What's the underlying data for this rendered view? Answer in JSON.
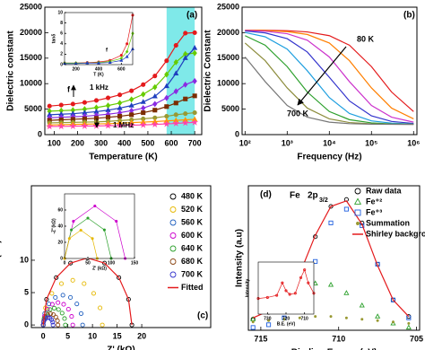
{
  "chart_data": [
    {
      "type": "line",
      "xlabel": "Temperature (K)",
      "ylabel": "Dielectric constant",
      "annotations": [
        "(a)",
        "1 kHz",
        "1 MHz",
        "f"
      ],
      "xlim": [
        60,
        730
      ],
      "ylim": [
        0,
        25000
      ],
      "xticks": [
        100,
        200,
        300,
        400,
        500,
        600,
        700
      ],
      "yticks": [
        0,
        5000,
        10000,
        15000,
        20000,
        25000
      ],
      "xscale": "linear",
      "marker_fill": "solid",
      "highlight": {
        "range": [
          580,
          700
        ],
        "color": "#5fe3e3"
      },
      "x": [
        80,
        130,
        180,
        230,
        280,
        330,
        380,
        430,
        480,
        530,
        580,
        620,
        660,
        700
      ],
      "series": [
        {
          "color": "#e41a1c",
          "marker": "circle",
          "line": true,
          "values": [
            5600,
            5800,
            6000,
            6300,
            6700,
            7200,
            7800,
            8600,
            9800,
            11500,
            14500,
            17500,
            19900,
            20000
          ]
        },
        {
          "color": "#66cc00",
          "marker": "diamond",
          "line": true,
          "values": [
            4600,
            4700,
            4800,
            5000,
            5300,
            5700,
            6200,
            6900,
            7900,
            9300,
            11800,
            14200,
            15800,
            16000
          ]
        },
        {
          "color": "#1f3fbf",
          "marker": "triangle",
          "line": true,
          "values": [
            3900,
            4000,
            4100,
            4300,
            4500,
            4800,
            5200,
            5700,
            6400,
            7500,
            9500,
            12000,
            15000,
            17000
          ]
        },
        {
          "color": "#8a2be2",
          "marker": "diamond",
          "line": true,
          "values": [
            3300,
            3400,
            3500,
            3600,
            3800,
            4000,
            4300,
            4700,
            5200,
            6000,
            7200,
            8500,
            9800,
            10500
          ]
        },
        {
          "color": "#7b2d00",
          "marker": "square",
          "line": true,
          "values": [
            2800,
            2900,
            3000,
            3100,
            3200,
            3400,
            3600,
            3900,
            4300,
            4800,
            5500,
            6200,
            7000,
            7600
          ]
        },
        {
          "color": "#999933",
          "marker": "circle",
          "line": true,
          "values": [
            2300,
            2350,
            2400,
            2450,
            2500,
            2600,
            2750,
            2900,
            3100,
            3300,
            3600,
            3900,
            4100,
            4300
          ]
        },
        {
          "color": "#ff9900",
          "marker": "triangle",
          "line": true,
          "values": [
            1900,
            1950,
            2000,
            2050,
            2100,
            2150,
            2250,
            2350,
            2450,
            2550,
            2700,
            2800,
            2900,
            3000
          ]
        },
        {
          "color": "#ff44aa",
          "marker": "star",
          "line": true,
          "values": [
            1600,
            1620,
            1650,
            1680,
            1700,
            1750,
            1800,
            1850,
            1900,
            2000,
            2100,
            2200,
            2300,
            2400
          ]
        }
      ],
      "inset": {
        "type": "line",
        "xlabel": "T (K)",
        "ylabel": "tanδ",
        "annotations": [
          "f"
        ],
        "xlim": [
          100,
          700
        ],
        "ylim": [
          0,
          10
        ],
        "xticks": [
          200,
          400,
          600
        ],
        "yticks": [
          0,
          2,
          4,
          6,
          8,
          10
        ],
        "xscale": "linear",
        "marker_fill": "solid",
        "x": [
          100,
          200,
          300,
          400,
          500,
          600,
          650,
          700
        ],
        "series": [
          {
            "color": "#e41a1c",
            "marker": "circle",
            "line": true,
            "values": [
              0.3,
              0.3,
              0.4,
              0.5,
              0.8,
              1.8,
              4,
              9.5
            ]
          },
          {
            "color": "#66cc00",
            "marker": "diamond",
            "line": true,
            "values": [
              0.3,
              0.3,
              0.3,
              0.4,
              0.6,
              1.2,
              2.5,
              6
            ]
          },
          {
            "color": "#1f3fbf",
            "marker": "triangle",
            "line": true,
            "values": [
              0.2,
              0.2,
              0.3,
              0.3,
              0.4,
              0.8,
              1.5,
              3
            ]
          }
        ]
      }
    },
    {
      "type": "line",
      "xlabel": "Frequency (Hz)",
      "ylabel": "Dielectric Constant",
      "annotations": [
        "(b)",
        "80 K",
        "700 K"
      ],
      "xlim": [
        85,
        1200000
      ],
      "ylim": [
        0,
        25000
      ],
      "xscale": "log",
      "xticks": [
        {
          "value": 100,
          "label": "10²"
        },
        {
          "value": 1000,
          "label": "10³"
        },
        {
          "value": 10000,
          "label": "10⁴"
        },
        {
          "value": 100000,
          "label": "10⁵"
        },
        {
          "value": 1000000,
          "label": "10⁶"
        }
      ],
      "yticks": [
        0,
        5000,
        10000,
        15000,
        20000,
        25000
      ],
      "marker_fill": "solid",
      "x": [
        100,
        300,
        1000,
        3000,
        10000,
        30000,
        100000,
        300000,
        1000000
      ],
      "series": [
        {
          "color": "#e41a1c",
          "marker": "none",
          "line": true,
          "values": [
            20500,
            20460,
            20390,
            20150,
            19410,
            17540,
            13340,
            8360,
            4530
          ]
        },
        {
          "color": "#ff7f00",
          "marker": "none",
          "line": true,
          "values": [
            20460,
            20410,
            20200,
            19650,
            17970,
            14510,
            9160,
            5200,
            3090
          ]
        },
        {
          "color": "#cc33cc",
          "marker": "none",
          "line": true,
          "values": [
            20430,
            20280,
            19800,
            18520,
            15230,
            10400,
            5720,
            3420,
            2440
          ]
        },
        {
          "color": "#3333cc",
          "marker": "none",
          "line": true,
          "values": [
            20320,
            19960,
            18820,
            16210,
            11250,
            6610,
            3680,
            2590,
            2190
          ]
        },
        {
          "color": "#1f9fdf",
          "marker": "none",
          "line": true,
          "values": [
            20040,
            19190,
            16780,
            12530,
            7270,
            4150,
            2700,
            2240,
            2070
          ]
        },
        {
          "color": "#2ca02c",
          "marker": "none",
          "line": true,
          "values": [
            19410,
            17540,
            13340,
            8360,
            4530,
            2930,
            2300,
            2090,
            2040
          ]
        },
        {
          "color": "#8c8c3c",
          "marker": "none",
          "line": true,
          "values": [
            17970,
            14510,
            9160,
            5200,
            3090,
            2370,
            2110,
            2040,
            2020
          ]
        },
        {
          "color": "#777777",
          "marker": "none",
          "line": true,
          "values": [
            15230,
            10400,
            5720,
            3420,
            2440,
            2150,
            2050,
            2020,
            2000
          ]
        }
      ]
    },
    {
      "type": "line",
      "xlabel": "Z' (kΩ)",
      "ylabel": "- Z''(kΩ)",
      "annotations": [
        "(c)"
      ],
      "xlim": [
        -2.4,
        34
      ],
      "ylim": [
        -0.4,
        21.5
      ],
      "xticks": [
        0,
        5,
        10,
        15,
        20
      ],
      "yticks": [
        0,
        5,
        10
      ],
      "xscale": "linear",
      "marker_fill": "open",
      "legend": "upper right",
      "series": [
        {
          "name": "480 K",
          "color": "#000000",
          "marker": "circle",
          "line": false,
          "x": [
            0,
            0.68,
            2.64,
            5.55,
            9,
            12.45,
            15.36,
            17.32,
            18
          ],
          "values": [
            0,
            3.96,
            7.32,
            9.56,
            10.35,
            9.56,
            7.32,
            3.96,
            0
          ]
        },
        {
          "name": "520 K",
          "color": "#e6b800",
          "marker": "circle",
          "line": false,
          "x": [
            0,
            0.46,
            1.76,
            3.7,
            6,
            8.3,
            10.24,
            11.54,
            12
          ],
          "values": [
            0,
            2.64,
            4.88,
            6.38,
            6.9,
            6.38,
            4.88,
            2.64,
            0
          ]
        },
        {
          "name": "560 K",
          "color": "#1f5fbf",
          "marker": "circle",
          "line": false,
          "x": [
            0,
            0.3,
            1.17,
            2.47,
            4,
            5.53,
            6.83,
            7.7,
            8
          ],
          "values": [
            0,
            1.76,
            3.25,
            4.25,
            4.6,
            4.25,
            3.25,
            1.76,
            0
          ]
        },
        {
          "name": "600 K",
          "color": "#cc00cc",
          "marker": "circle",
          "line": false,
          "x": [
            0,
            0.23,
            0.88,
            1.85,
            3,
            4.15,
            5.12,
            5.77,
            6
          ],
          "values": [
            0,
            1.32,
            2.44,
            3.19,
            3.45,
            3.19,
            2.44,
            1.32,
            0
          ]
        },
        {
          "name": "640 K",
          "color": "#2ca02c",
          "marker": "circle",
          "line": false,
          "x": [
            0,
            0.17,
            0.66,
            1.39,
            2.25,
            3.11,
            3.84,
            4.33,
            4.5
          ],
          "values": [
            0,
            0.99,
            1.83,
            2.39,
            2.59,
            2.39,
            1.83,
            0.99,
            0
          ]
        },
        {
          "name": "680 K",
          "color": "#8b4513",
          "marker": "circle",
          "line": false,
          "x": [
            0,
            0.11,
            0.44,
            0.93,
            1.5,
            2.07,
            2.56,
            2.89,
            3
          ],
          "values": [
            0,
            0.66,
            1.22,
            1.59,
            1.73,
            1.59,
            1.22,
            0.66,
            0
          ]
        },
        {
          "name": "700 K",
          "color": "#3333cc",
          "marker": "circle",
          "line": false,
          "x": [
            0,
            0.08,
            0.29,
            0.62,
            1,
            1.38,
            1.71,
            1.92,
            2
          ],
          "values": [
            0,
            0.44,
            0.81,
            1.06,
            1.15,
            1.06,
            0.81,
            0.44,
            0
          ]
        },
        {
          "name": "Fitted",
          "color": "#e41a1c",
          "marker": "none",
          "line": true,
          "x": [
            0,
            0.68,
            2.64,
            5.55,
            9,
            12.45,
            15.36,
            17.32,
            18
          ],
          "values": [
            0,
            3.96,
            7.32,
            9.56,
            10.35,
            9.56,
            7.32,
            3.96,
            0
          ]
        }
      ],
      "inset": {
        "type": "line",
        "xlabel": "Z' (kΩ)",
        "ylabel": "-Z''(kΩ)",
        "annotations": [],
        "xlim": [
          0,
          150
        ],
        "ylim": [
          0,
          80
        ],
        "xticks": [
          0,
          50,
          100,
          150
        ],
        "yticks": [
          0,
          20,
          40,
          60
        ],
        "xscale": "linear",
        "marker_fill": "solid",
        "series": [
          {
            "color": "#cc00cc",
            "marker": "circle",
            "line": true,
            "x": [
              0,
              19,
              65,
              111,
              130
            ],
            "values": [
              0,
              46,
              65,
              46,
              0
            ]
          },
          {
            "color": "#2ca02c",
            "marker": "circle",
            "line": true,
            "x": [
              0,
              14.6,
              50,
              85.4,
              100
            ],
            "values": [
              0,
              35.4,
              50,
              35.4,
              0
            ]
          },
          {
            "color": "#e6b800",
            "marker": "circle",
            "line": true,
            "x": [
              0,
              10.3,
              35,
              59.7,
              70
            ],
            "values": [
              0,
              24.7,
              35,
              24.7,
              0
            ]
          }
        ]
      }
    },
    {
      "type": "line",
      "xlabel": "Binding Energy (eV)",
      "ylabel": "Intensity (a.u)",
      "annotations": [
        "(d)",
        "Fe",
        "2p",
        "3/2"
      ],
      "xlim": [
        715.8,
        704.8
      ],
      "ylim": [
        0,
        105
      ],
      "xticks": [
        715,
        710,
        705
      ],
      "yticks": [],
      "xscale": "linear",
      "marker_fill": "open",
      "legend": "upper right",
      "x": [
        715.5,
        714.5,
        713.5,
        712.5,
        711.5,
        710.5,
        709.5,
        708.5,
        707.5,
        706.5,
        705.5
      ],
      "series": [
        {
          "name": "Raw data",
          "color": "#000000",
          "marker": "circle",
          "line": false,
          "values": [
            8,
            13,
            22,
            40,
            68,
            90,
            95,
            78,
            48,
            22,
            10
          ]
        },
        {
          "name": "Fe⁺²",
          "color": "#2ca02c",
          "marker": "triangle",
          "line": false,
          "values": [
            8,
            14,
            22,
            30,
            34,
            33,
            27,
            18,
            10,
            5,
            2
          ]
        },
        {
          "name": "Fe⁺³",
          "color": "#1f5fdf",
          "marker": "square",
          "line": false,
          "values": [
            2,
            4,
            9,
            22,
            50,
            78,
            88,
            76,
            48,
            22,
            9
          ]
        },
        {
          "name": "Summation",
          "color": "#999933",
          "marker": "dot",
          "line": false,
          "values": [
            6,
            7,
            8,
            9,
            10,
            10,
            9,
            8,
            7,
            6,
            5
          ]
        },
        {
          "name": "Shirley background",
          "color": "#e41a1c",
          "marker": "none",
          "line": true,
          "values": [
            9,
            14,
            23,
            41,
            69,
            90,
            94,
            77,
            47,
            22,
            10
          ]
        }
      ],
      "inset": {
        "type": "line",
        "xlabel": "B.E. (eV)",
        "ylabel": "Intensity",
        "annotations": [],
        "xlim": [
          735,
          705
        ],
        "ylim": [
          0,
          100
        ],
        "xticks": [
          730,
          720,
          710
        ],
        "yticks": [],
        "xscale": "linear",
        "marker_fill": "open",
        "x": [
          735,
          730,
          725,
          722,
          720,
          718,
          715,
          712,
          710,
          708,
          705
        ],
        "series": [
          {
            "color": "#e41a1c",
            "marker": "circle",
            "line": true,
            "values": [
              30,
              32,
              36,
              60,
              45,
              38,
              40,
              70,
              85,
              60,
              40
            ]
          }
        ]
      }
    }
  ]
}
